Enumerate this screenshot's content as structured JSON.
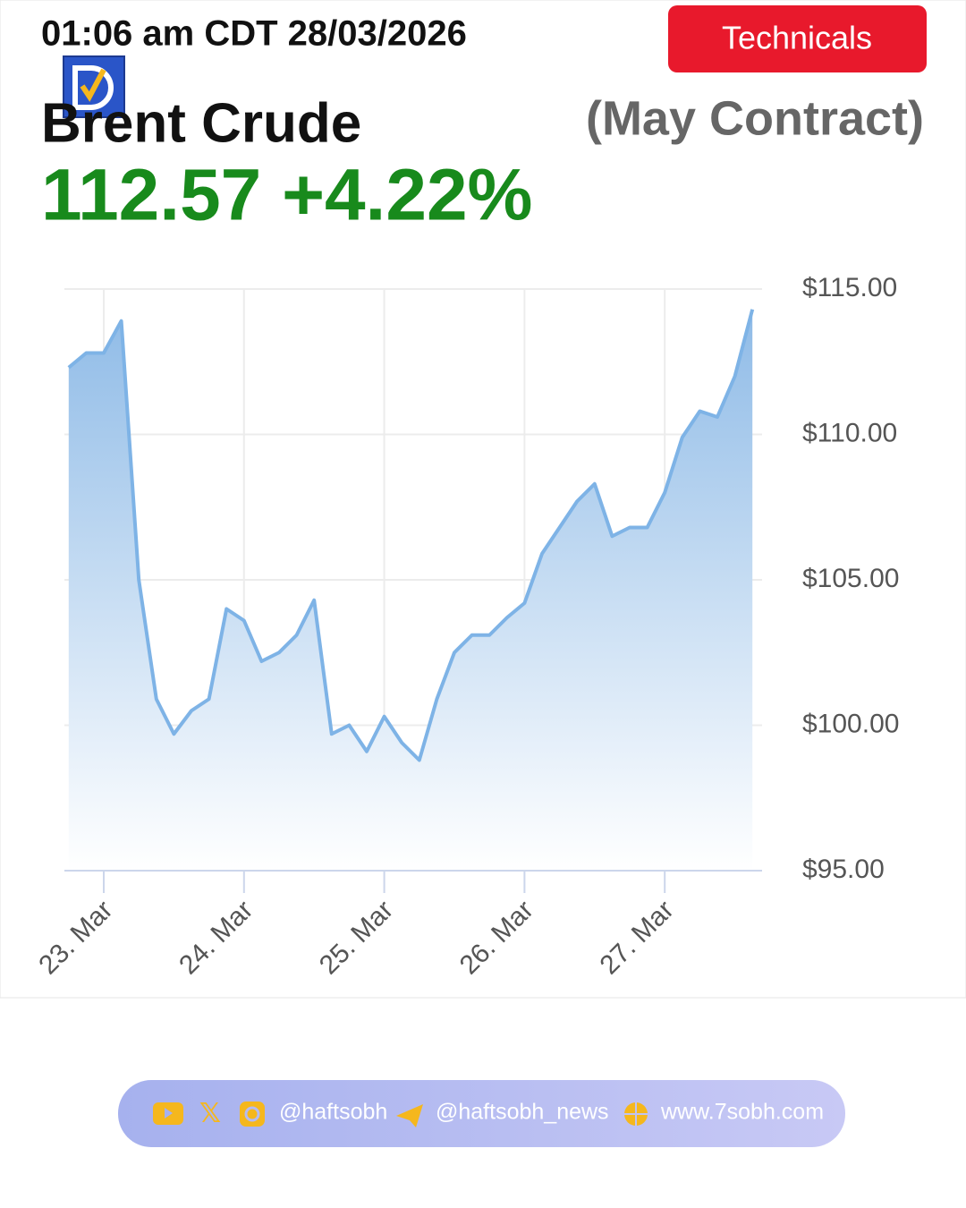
{
  "header": {
    "timestamp": "01:06 am CDT 28/03/2026",
    "button": "Technicals",
    "instrument": "Brent Crude",
    "contract": "(May Contract)",
    "quote": "112.57 +4.22%"
  },
  "chart_data": {
    "type": "area",
    "color": "#7eb3e6",
    "categories": [
      null,
      null,
      "23. Mar",
      null,
      null,
      null,
      null,
      null,
      null,
      null,
      "24. Mar",
      null,
      null,
      null,
      null,
      null,
      null,
      null,
      "25. Mar",
      null,
      null,
      null,
      null,
      null,
      null,
      null,
      "26. Mar",
      null,
      null,
      null,
      null,
      null,
      null,
      null,
      "27. Mar",
      null,
      null,
      null,
      null,
      null
    ],
    "values": [
      112.3,
      112.8,
      112.8,
      113.9,
      105,
      100.9,
      99.7,
      100.5,
      100.9,
      104.0,
      103.6,
      102.2,
      102.5,
      103.1,
      104.3,
      99.7,
      100.0,
      99.1,
      100.3,
      99.4,
      98.8,
      100.9,
      102.5,
      103.1,
      103.1,
      103.7,
      104.2,
      105.9,
      106.8,
      107.7,
      108.3,
      106.5,
      106.8,
      106.8,
      108.0,
      109.9,
      110.8,
      110.6,
      112.0,
      114.3
    ],
    "ylim": [
      95,
      115
    ],
    "yticks": [
      {
        "value": 95,
        "label": "$95.00"
      },
      {
        "value": 100,
        "label": "$100.00"
      },
      {
        "value": 105,
        "label": "$105.00"
      },
      {
        "value": 110,
        "label": "$110.00"
      },
      {
        "value": 115,
        "label": "$115.00"
      }
    ],
    "grid": true
  },
  "footer": {
    "handle": "@haftsobh",
    "news": "@haftsobh_news",
    "site": "www.7sobh.com"
  }
}
